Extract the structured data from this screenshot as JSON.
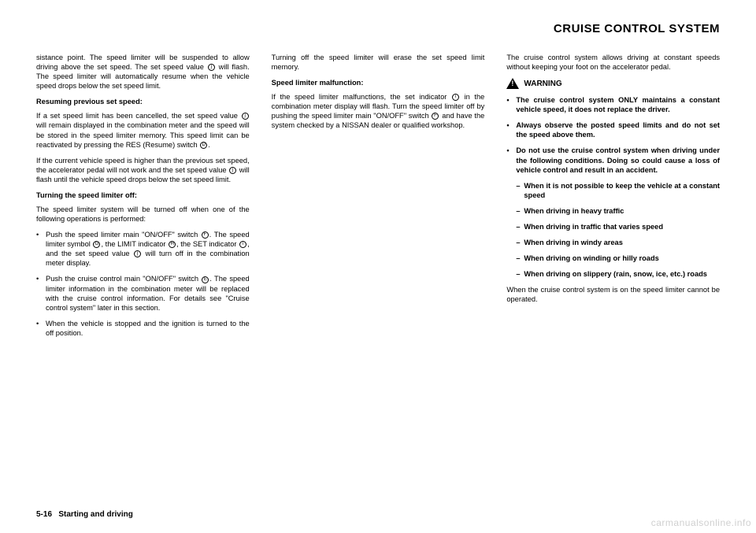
{
  "header": {
    "title": "CRUISE CONTROL SYSTEM"
  },
  "col1": {
    "p1": "sistance point. The speed limiter will be suspended to allow driving above the set speed. The set speed value ",
    "p1b": " will flash. The speed limiter will automatically resume when the vehicle speed drops below the set speed limit.",
    "sub1": "Resuming previous set speed:",
    "p2a": "If a set speed limit has been cancelled, the set speed value ",
    "p2b": " will remain displayed in the combination meter and the speed will be stored in the speed limiter memory. This speed limit can be reactivated by pressing the RES (Resume) switch ",
    "p2c": ".",
    "p3a": "If the current vehicle speed is higher than the previous set speed, the accelerator pedal will not work and the set speed value ",
    "p3b": " will flash until the vehicle speed drops below the set speed limit.",
    "sub2": "Turning the speed limiter off:",
    "p4": "The speed limiter system will be turned off when one of the following operations is performed:",
    "b1a": "Push the speed limiter main \"ON/OFF\" switch ",
    "b1b": ". The speed limiter symbol ",
    "b1c": ", the LIMIT indicator ",
    "b1d": ", the SET indicator ",
    "b1e": ", and the set speed value ",
    "b1f": " will turn off in the combination meter display.",
    "b2a": "Push the cruise control main \"ON/OFF\" switch ",
    "b2b": ". The speed limiter information in the combination meter will be replaced with the cruise control information. For details see \"Cruise control system\" later in this section.",
    "b3": "When the vehicle is stopped and the ignition is turned to the off position."
  },
  "col2": {
    "p1": "Turning off the speed limiter will erase the set speed limit memory.",
    "sub1": "Speed limiter malfunction:",
    "p2a": "If the speed limiter malfunctions, the set indicator ",
    "p2b": " in the combination meter display will flash. Turn the speed limiter off by pushing the speed limiter main \"ON/OFF\" switch ",
    "p2c": " and have the system checked by a NISSAN dealer or qualified workshop."
  },
  "col3": {
    "p1": "The cruise control system allows driving at constant speeds without keeping your foot on the accelerator pedal.",
    "warn": "WARNING",
    "b1": "The cruise control system ONLY maintains a constant vehicle speed, it does not replace the driver.",
    "b2": "Always observe the posted speed limits and do not set the speed above them.",
    "b3": "Do not use the cruise control system when driving under the following conditions. Doing so could cause a loss of vehicle control and result in an accident.",
    "d1": "When it is not possible to keep the vehicle at a constant speed",
    "d2": "When driving in heavy traffic",
    "d3": "When driving in traffic that varies speed",
    "d4": "When driving in windy areas",
    "d5": "When driving on winding or hilly roads",
    "d6": "When driving on slippery (rain, snow, ice, etc.) roads",
    "p2": "When the cruise control system is on the speed limiter cannot be operated."
  },
  "footer": {
    "page": "5-16",
    "section": "Starting and driving"
  },
  "watermark": "carmanualsonline.info",
  "icons": {
    "j": "j",
    "d": "D",
    "f": "F",
    "g": "G",
    "h": "H",
    "i": "i",
    "e": "E"
  }
}
